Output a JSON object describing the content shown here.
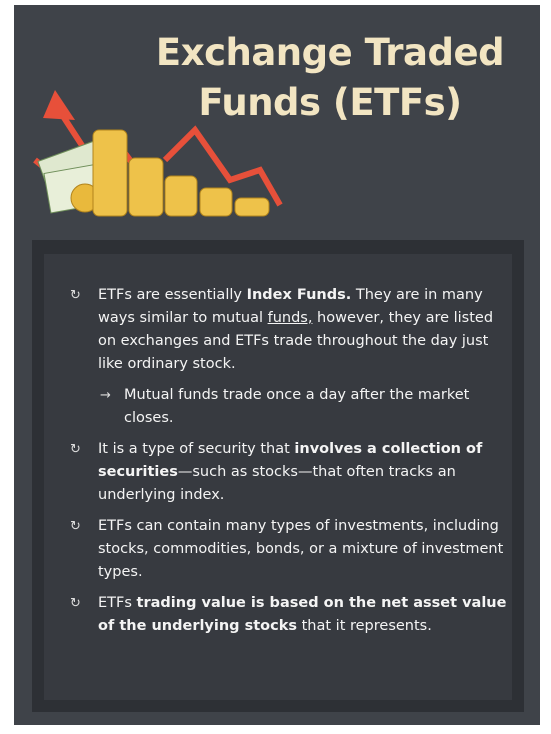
{
  "header": {
    "title_lines": [
      "Exchange Traded",
      "Funds (ETFs)"
    ]
  },
  "items": [
    [
      "ETFs are essentially ",
      "Index Funds.",
      " They are in many ways similar to mutual ",
      "funds,",
      " however, they are listed on exchanges and ETFs trade throughout the day just like ordinary stock."
    ],
    [
      "Mutual funds trade once a day after the market closes."
    ],
    [
      "It is a type of security that ",
      "involves a collection of securities",
      "—such as stocks—that often tracks an underlying index."
    ],
    [
      "ETFs can contain many types of investments, including stocks, commodities, bonds, or a mixture of investment types."
    ],
    [
      "ETFs ",
      "trading value is based on the net asset value of the underlying stocks",
      " that it represents."
    ]
  ]
}
